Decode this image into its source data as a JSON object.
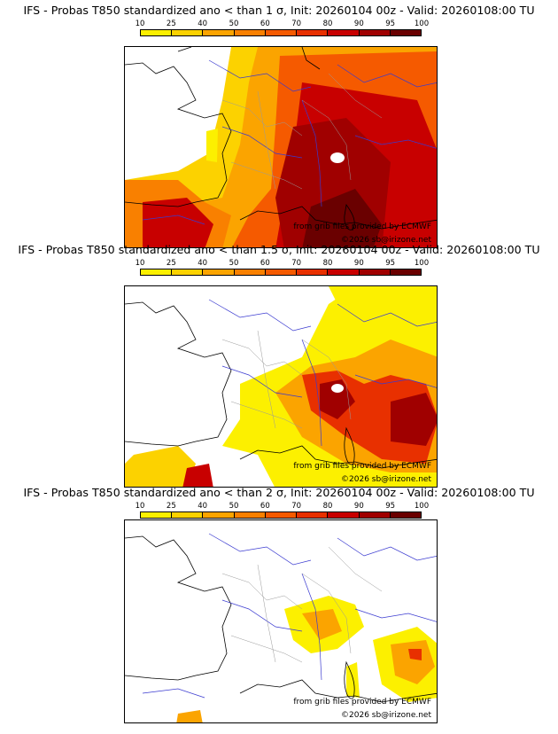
{
  "panels": [
    {
      "title": "IFS - Probas T850  standardized ano < than 1 σ, Init: 20260104 00z - Valid: 20260108:00 TU",
      "credit_source": "from grib files provided by ECMWF",
      "credit_copyright": "©2026 sb@irizone.net"
    },
    {
      "title": "IFS - Probas T850  standardized ano < than 1.5 σ, Init: 20260104 00z - Valid: 20260108:00 TU",
      "credit_source": "from grib files provided by ECMWF",
      "credit_copyright": "©2026 sb@irizone.net"
    },
    {
      "title": "IFS - Probas T850  standardized ano < than 2 σ, Init: 20260104 00z - Valid: 20260108:00 TU",
      "credit_source": "from grib files provided by ECMWF",
      "credit_copyright": "©2026 sb@irizone.net"
    }
  ],
  "colorbar": {
    "ticks": [
      "10",
      "25",
      "40",
      "50",
      "60",
      "70",
      "80",
      "90",
      "95",
      "100"
    ],
    "colors": [
      "#fcf000",
      "#fcd200",
      "#fba400",
      "#f98000",
      "#f55a00",
      "#e83000",
      "#c80000",
      "#a00000",
      "#6a0000"
    ]
  }
}
